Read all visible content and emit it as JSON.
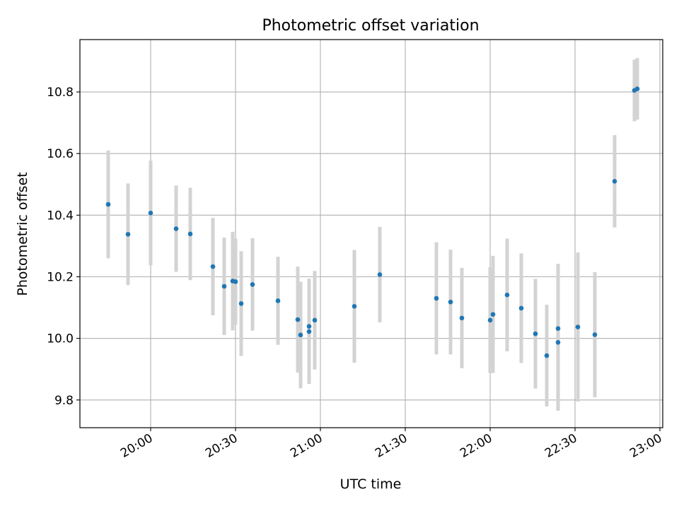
{
  "chart_data": {
    "type": "scatter",
    "title": "Photometric offset variation",
    "xlabel": "UTC time",
    "ylabel": "Photometric offset",
    "x_unit": "UTC time (HH:MM)",
    "xlim": [
      "19:35",
      "23:01"
    ],
    "ylim": [
      9.71,
      10.97
    ],
    "x_ticks": [
      "20:00",
      "20:30",
      "21:00",
      "21:30",
      "22:00",
      "22:30",
      "23:00"
    ],
    "y_ticks": [
      9.8,
      10.0,
      10.2,
      10.4,
      10.6,
      10.8
    ],
    "grid": true,
    "legend": "none",
    "marker_color": "#1f77b4",
    "errorbar_color": "#d3d3d3",
    "points": [
      {
        "x": "19:45",
        "y": 10.435,
        "err": 0.175
      },
      {
        "x": "19:52",
        "y": 10.338,
        "err": 0.165
      },
      {
        "x": "20:00",
        "y": 10.407,
        "err": 0.17
      },
      {
        "x": "20:09",
        "y": 10.356,
        "err": 0.14
      },
      {
        "x": "20:14",
        "y": 10.339,
        "err": 0.15
      },
      {
        "x": "20:22",
        "y": 10.233,
        "err": 0.158
      },
      {
        "x": "20:26",
        "y": 10.169,
        "err": 0.158
      },
      {
        "x": "20:29",
        "y": 10.186,
        "err": 0.16
      },
      {
        "x": "20:30",
        "y": 10.184,
        "err": 0.14
      },
      {
        "x": "20:32",
        "y": 10.113,
        "err": 0.17
      },
      {
        "x": "20:36",
        "y": 10.175,
        "err": 0.15
      },
      {
        "x": "20:45",
        "y": 10.122,
        "err": 0.143
      },
      {
        "x": "20:52",
        "y": 10.061,
        "err": 0.172
      },
      {
        "x": "20:53",
        "y": 10.011,
        "err": 0.173
      },
      {
        "x": "20:56",
        "y": 10.039,
        "err": 0.155
      },
      {
        "x": "20:56",
        "y": 10.022,
        "err": 0.17
      },
      {
        "x": "20:58",
        "y": 10.059,
        "err": 0.16
      },
      {
        "x": "21:12",
        "y": 10.104,
        "err": 0.183
      },
      {
        "x": "21:21",
        "y": 10.207,
        "err": 0.155
      },
      {
        "x": "21:41",
        "y": 10.13,
        "err": 0.182
      },
      {
        "x": "21:46",
        "y": 10.118,
        "err": 0.17
      },
      {
        "x": "21:50",
        "y": 10.066,
        "err": 0.163
      },
      {
        "x": "22:00",
        "y": 10.059,
        "err": 0.172
      },
      {
        "x": "22:01",
        "y": 10.078,
        "err": 0.19
      },
      {
        "x": "22:06",
        "y": 10.141,
        "err": 0.183
      },
      {
        "x": "22:11",
        "y": 10.098,
        "err": 0.178
      },
      {
        "x": "22:16",
        "y": 10.015,
        "err": 0.178
      },
      {
        "x": "22:20",
        "y": 9.944,
        "err": 0.165
      },
      {
        "x": "22:24",
        "y": 9.987,
        "err": 0.222
      },
      {
        "x": "22:24",
        "y": 10.032,
        "err": 0.21
      },
      {
        "x": "22:31",
        "y": 10.037,
        "err": 0.242
      },
      {
        "x": "22:37",
        "y": 10.012,
        "err": 0.203
      },
      {
        "x": "22:44",
        "y": 10.51,
        "err": 0.15
      },
      {
        "x": "22:51",
        "y": 10.805,
        "err": 0.1
      },
      {
        "x": "22:52",
        "y": 10.81,
        "err": 0.1
      }
    ]
  }
}
